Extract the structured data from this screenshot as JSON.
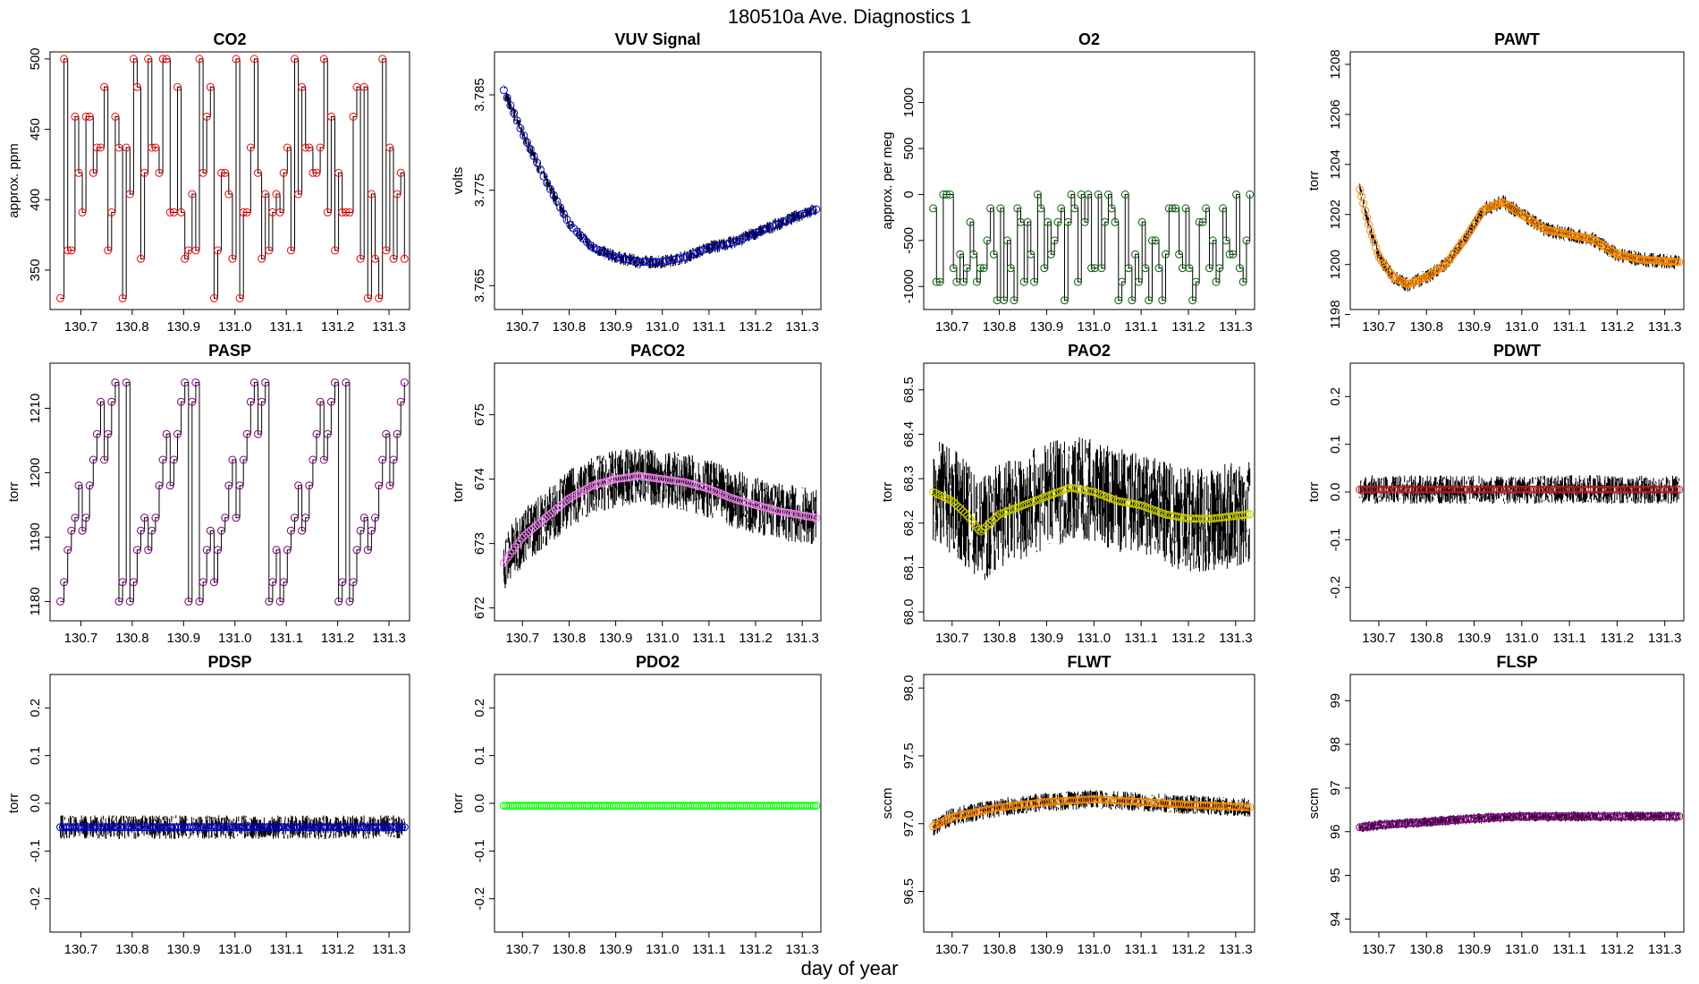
{
  "figure": {
    "title": "180510a   Ave. Diagnostics 1",
    "xlabel": "day of year"
  },
  "chart_data": [
    {
      "type": "line",
      "title": "CO2",
      "ylabel": "approx. ppm",
      "xlim": [
        130.64,
        131.34
      ],
      "ylim": [
        322,
        505
      ],
      "yticks": [
        350,
        400,
        450,
        500
      ],
      "xticks": [
        130.7,
        130.8,
        130.9,
        131.0,
        131.1,
        131.2,
        131.3
      ],
      "color": "#ff0000",
      "pattern": "steps",
      "levels": [
        330,
        358,
        364,
        391,
        404,
        419,
        437,
        459,
        480,
        500
      ],
      "start": 130.66,
      "end": 131.33,
      "npoints": 95
    },
    {
      "type": "line",
      "title": "VUV Signal",
      "ylabel": "volts",
      "xlim": [
        130.64,
        131.34
      ],
      "ylim": [
        3.7625,
        3.7895
      ],
      "yticks": [
        3.765,
        3.775,
        3.785
      ],
      "xticks": [
        130.7,
        130.8,
        130.9,
        131.0,
        131.1,
        131.2,
        131.3
      ],
      "color": "#0000cc",
      "pattern": "curve",
      "knots": [
        [
          130.66,
          3.7855
        ],
        [
          130.7,
          3.781
        ],
        [
          130.75,
          3.776
        ],
        [
          130.8,
          3.7715
        ],
        [
          130.85,
          3.769
        ],
        [
          130.9,
          3.768
        ],
        [
          130.95,
          3.7675
        ],
        [
          131.0,
          3.7675
        ],
        [
          131.05,
          3.768
        ],
        [
          131.1,
          3.769
        ],
        [
          131.15,
          3.7695
        ],
        [
          131.2,
          3.7705
        ],
        [
          131.25,
          3.7715
        ],
        [
          131.3,
          3.7725
        ],
        [
          131.33,
          3.773
        ]
      ],
      "noise": 0.0007,
      "start": 130.66,
      "end": 131.33,
      "npoints": 95
    },
    {
      "type": "line",
      "title": "O2",
      "ylabel": "approx. per meg",
      "xlim": [
        130.64,
        131.34
      ],
      "ylim": [
        -1250,
        1550
      ],
      "yticks": [
        -1000,
        -500,
        0,
        500,
        1000
      ],
      "xticks": [
        130.7,
        130.8,
        130.9,
        131.0,
        131.1,
        131.2,
        131.3
      ],
      "color": "#006400",
      "pattern": "steps",
      "levels": [
        -1150,
        -950,
        -800,
        -650,
        -500,
        -300,
        -150,
        0
      ],
      "start": 130.66,
      "end": 131.33,
      "npoints": 95
    },
    {
      "type": "line",
      "title": "PAWT",
      "ylabel": "torr",
      "xlim": [
        130.64,
        131.34
      ],
      "ylim": [
        1198.2,
        1208.5
      ],
      "yticks": [
        1198,
        1200,
        1202,
        1204,
        1206,
        1208
      ],
      "xticks": [
        130.7,
        130.8,
        130.9,
        131.0,
        131.1,
        131.2,
        131.3
      ],
      "color": "#ff8c00",
      "pattern": "curve",
      "knots": [
        [
          130.66,
          1203.0
        ],
        [
          130.68,
          1201.5
        ],
        [
          130.7,
          1200.3
        ],
        [
          130.73,
          1199.5
        ],
        [
          130.76,
          1199.2
        ],
        [
          130.8,
          1199.5
        ],
        [
          130.84,
          1200.0
        ],
        [
          130.88,
          1201.0
        ],
        [
          130.92,
          1202.2
        ],
        [
          130.96,
          1202.5
        ],
        [
          131.0,
          1202.0
        ],
        [
          131.05,
          1201.4
        ],
        [
          131.1,
          1201.2
        ],
        [
          131.15,
          1201.0
        ],
        [
          131.2,
          1200.4
        ],
        [
          131.25,
          1200.2
        ],
        [
          131.33,
          1200.1
        ]
      ],
      "noise": 0.3,
      "start": 130.66,
      "end": 131.33,
      "npoints": 180
    },
    {
      "type": "line",
      "title": "PASP",
      "ylabel": "torr",
      "xlim": [
        130.64,
        131.34
      ],
      "ylim": [
        1177,
        1217
      ],
      "yticks": [
        1180,
        1190,
        1200,
        1210
      ],
      "xticks": [
        130.7,
        130.8,
        130.9,
        131.0,
        131.1,
        131.2,
        131.3
      ],
      "color": "#800080",
      "pattern": "sawtooth",
      "levels": [
        1180,
        1183,
        1188,
        1191,
        1193,
        1198,
        1202,
        1206,
        1211,
        1214
      ],
      "start": 130.66,
      "end": 131.33,
      "npoints": 95
    },
    {
      "type": "line",
      "title": "PACO2",
      "ylabel": "torr",
      "xlim": [
        130.64,
        131.34
      ],
      "ylim": [
        671.8,
        675.8
      ],
      "yticks": [
        672,
        673,
        674,
        675
      ],
      "xticks": [
        130.7,
        130.8,
        130.9,
        131.0,
        131.1,
        131.2,
        131.3
      ],
      "color": "#ee82ee",
      "pattern": "curve",
      "knots": [
        [
          130.66,
          672.7
        ],
        [
          130.7,
          673.1
        ],
        [
          130.75,
          673.4
        ],
        [
          130.8,
          673.7
        ],
        [
          130.85,
          673.9
        ],
        [
          130.9,
          674.0
        ],
        [
          130.95,
          674.05
        ],
        [
          131.0,
          674.0
        ],
        [
          131.05,
          673.95
        ],
        [
          131.1,
          673.85
        ],
        [
          131.15,
          673.7
        ],
        [
          131.2,
          673.6
        ],
        [
          131.25,
          673.5
        ],
        [
          131.33,
          673.4
        ]
      ],
      "noise": 0.45,
      "start": 130.66,
      "end": 131.33,
      "npoints": 140
    },
    {
      "type": "line",
      "title": "PAO2",
      "ylabel": "torr",
      "xlim": [
        130.64,
        131.34
      ],
      "ylim": [
        67.98,
        68.56
      ],
      "yticks": [
        68.0,
        68.1,
        68.2,
        68.3,
        68.4,
        68.5
      ],
      "xticks": [
        130.7,
        130.8,
        130.9,
        131.0,
        131.1,
        131.2,
        131.3
      ],
      "color": "#cccc00",
      "pattern": "curve",
      "knots": [
        [
          130.66,
          68.27
        ],
        [
          130.7,
          68.25
        ],
        [
          130.73,
          68.22
        ],
        [
          130.76,
          68.18
        ],
        [
          130.8,
          68.22
        ],
        [
          130.85,
          68.24
        ],
        [
          130.9,
          68.26
        ],
        [
          130.95,
          68.28
        ],
        [
          131.0,
          68.27
        ],
        [
          131.05,
          68.25
        ],
        [
          131.1,
          68.24
        ],
        [
          131.15,
          68.22
        ],
        [
          131.2,
          68.21
        ],
        [
          131.25,
          68.21
        ],
        [
          131.33,
          68.22
        ]
      ],
      "noise": 0.12,
      "start": 130.66,
      "end": 131.33,
      "npoints": 140
    },
    {
      "type": "line",
      "title": "PDWT",
      "ylabel": "torr",
      "xlim": [
        130.64,
        131.34
      ],
      "ylim": [
        -0.27,
        0.27
      ],
      "yticks": [
        -0.2,
        -0.1,
        0.0,
        0.1,
        0.2
      ],
      "xticks": [
        130.7,
        130.8,
        130.9,
        131.0,
        131.1,
        131.2,
        131.3
      ],
      "color": "#b22222",
      "pattern": "flat",
      "value": 0.005,
      "noise": 0.03,
      "start": 130.66,
      "end": 131.33,
      "npoints": 140
    },
    {
      "type": "line",
      "title": "PDSP",
      "ylabel": "torr",
      "xlim": [
        130.64,
        131.34
      ],
      "ylim": [
        -0.27,
        0.27
      ],
      "yticks": [
        -0.2,
        -0.1,
        0.0,
        0.1,
        0.2
      ],
      "xticks": [
        130.7,
        130.8,
        130.9,
        131.0,
        131.1,
        131.2,
        131.3
      ],
      "color": "#0000cd",
      "pattern": "flat",
      "value": -0.05,
      "noise": 0.025,
      "start": 130.66,
      "end": 131.33,
      "npoints": 140
    },
    {
      "type": "line",
      "title": "PDO2",
      "ylabel": "torr",
      "xlim": [
        130.64,
        131.34
      ],
      "ylim": [
        -0.27,
        0.27
      ],
      "yticks": [
        -0.2,
        -0.1,
        0.0,
        0.1,
        0.2
      ],
      "xticks": [
        130.7,
        130.8,
        130.9,
        131.0,
        131.1,
        131.2,
        131.3
      ],
      "color": "#00ff00",
      "pattern": "flat",
      "value": -0.005,
      "noise": 0.0,
      "start": 130.66,
      "end": 131.33,
      "npoints": 140
    },
    {
      "type": "line",
      "title": "FLWT",
      "ylabel": "sccm",
      "xlim": [
        130.64,
        131.34
      ],
      "ylim": [
        96.2,
        98.1
      ],
      "yticks": [
        96.5,
        97.0,
        97.5,
        98.0
      ],
      "xticks": [
        130.7,
        130.8,
        130.9,
        131.0,
        131.1,
        131.2,
        131.3
      ],
      "color": "#ff8c00",
      "pattern": "curve",
      "knots": [
        [
          130.66,
          96.98
        ],
        [
          130.7,
          97.05
        ],
        [
          130.8,
          97.12
        ],
        [
          130.9,
          97.16
        ],
        [
          131.0,
          97.18
        ],
        [
          131.1,
          97.16
        ],
        [
          131.2,
          97.14
        ],
        [
          131.33,
          97.12
        ]
      ],
      "noise": 0.07,
      "start": 130.66,
      "end": 131.33,
      "npoints": 140
    },
    {
      "type": "line",
      "title": "FLSP",
      "ylabel": "sccm",
      "xlim": [
        130.64,
        131.34
      ],
      "ylim": [
        93.7,
        99.6
      ],
      "yticks": [
        94,
        95,
        96,
        97,
        98,
        99
      ],
      "xticks": [
        130.7,
        130.8,
        130.9,
        131.0,
        131.1,
        131.2,
        131.3
      ],
      "color": "#800080",
      "pattern": "curve",
      "knots": [
        [
          130.66,
          96.1
        ],
        [
          130.7,
          96.15
        ],
        [
          130.8,
          96.22
        ],
        [
          130.9,
          96.3
        ],
        [
          131.0,
          96.35
        ],
        [
          131.1,
          96.35
        ],
        [
          131.2,
          96.35
        ],
        [
          131.33,
          96.35
        ]
      ],
      "noise": 0.12,
      "start": 130.66,
      "end": 131.33,
      "npoints": 140
    }
  ]
}
